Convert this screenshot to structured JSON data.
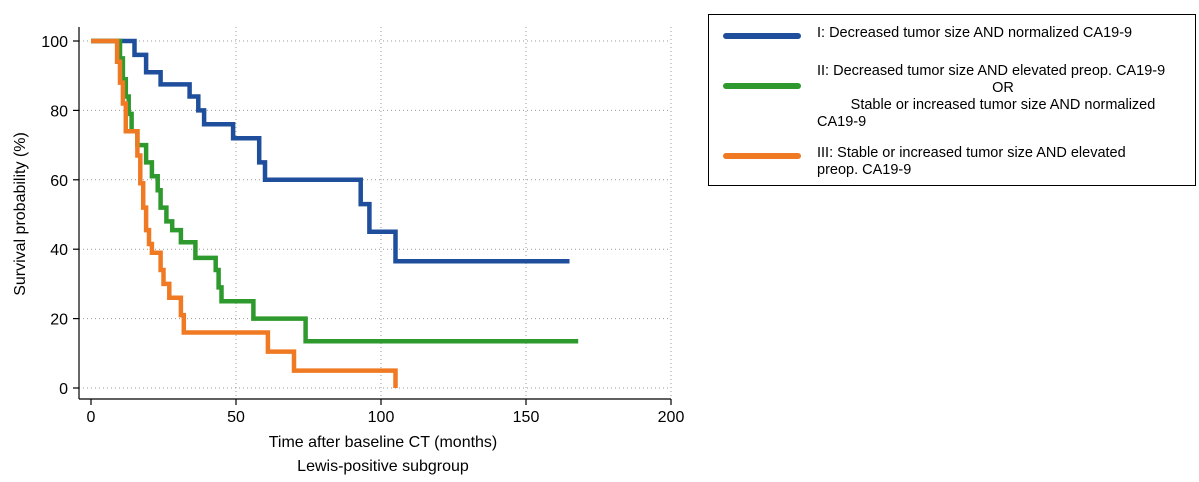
{
  "chart_data": {
    "type": "line",
    "step": true,
    "xlabel": "Time after baseline CT (months)",
    "subtitle": "Lewis-positive subgroup",
    "ylabel": "Survival probability (%)",
    "xlim": [
      0,
      200
    ],
    "ylim": [
      0,
      100
    ],
    "xticks": [
      0,
      50,
      100,
      150,
      200
    ],
    "yticks": [
      0,
      20,
      40,
      60,
      80,
      100
    ],
    "grid": true,
    "legend_position": "right",
    "series": [
      {
        "name": "I: Decreased tumor size AND normalized CA19-9",
        "color": "#1f4e9c",
        "points": [
          [
            0,
            100
          ],
          [
            15,
            100
          ],
          [
            15,
            96
          ],
          [
            19,
            96
          ],
          [
            19,
            91
          ],
          [
            24,
            91
          ],
          [
            24,
            87.5
          ],
          [
            34,
            87.5
          ],
          [
            34,
            84
          ],
          [
            37,
            84
          ],
          [
            37,
            80
          ],
          [
            39,
            80
          ],
          [
            39,
            76
          ],
          [
            49,
            76
          ],
          [
            49,
            72
          ],
          [
            58,
            72
          ],
          [
            58,
            65
          ],
          [
            60,
            65
          ],
          [
            60,
            60
          ],
          [
            93,
            60
          ],
          [
            93,
            53
          ],
          [
            96,
            53
          ],
          [
            96,
            45
          ],
          [
            105,
            45
          ],
          [
            105,
            36.5
          ],
          [
            165,
            36.5
          ]
        ]
      },
      {
        "name_lines": [
          "II: Decreased tumor size AND elevated preop. CA19-9",
          "OR",
          "Stable or increased tumor size AND normalized",
          "CA19-9"
        ],
        "color": "#2e9a2e",
        "points": [
          [
            0,
            100
          ],
          [
            10,
            100
          ],
          [
            10,
            95
          ],
          [
            11,
            95
          ],
          [
            11,
            89
          ],
          [
            12,
            89
          ],
          [
            12,
            84
          ],
          [
            13,
            84
          ],
          [
            13,
            79
          ],
          [
            14,
            79
          ],
          [
            14,
            74
          ],
          [
            16,
            74
          ],
          [
            16,
            70
          ],
          [
            19,
            70
          ],
          [
            19,
            65
          ],
          [
            21,
            65
          ],
          [
            21,
            61
          ],
          [
            23,
            61
          ],
          [
            23,
            57
          ],
          [
            24,
            57
          ],
          [
            24,
            52
          ],
          [
            26,
            52
          ],
          [
            26,
            48
          ],
          [
            28,
            48
          ],
          [
            28,
            45.5
          ],
          [
            31,
            45.5
          ],
          [
            31,
            42
          ],
          [
            36,
            42
          ],
          [
            36,
            37.5
          ],
          [
            43,
            37.5
          ],
          [
            43,
            34
          ],
          [
            44,
            34
          ],
          [
            44,
            29
          ],
          [
            45,
            29
          ],
          [
            45,
            25
          ],
          [
            56,
            25
          ],
          [
            56,
            20
          ],
          [
            74,
            20
          ],
          [
            74,
            13.5
          ],
          [
            168,
            13.5
          ]
        ]
      },
      {
        "name_lines": [
          "III: Stable or increased tumor size AND elevated",
          "preop. CA19-9"
        ],
        "color": "#f07a23",
        "points": [
          [
            0,
            100
          ],
          [
            9,
            100
          ],
          [
            9,
            94
          ],
          [
            10,
            94
          ],
          [
            10,
            88
          ],
          [
            11,
            88
          ],
          [
            11,
            82
          ],
          [
            12,
            82
          ],
          [
            12,
            74
          ],
          [
            16,
            74
          ],
          [
            16,
            67
          ],
          [
            17,
            67
          ],
          [
            17,
            59
          ],
          [
            18,
            59
          ],
          [
            18,
            52
          ],
          [
            19,
            52
          ],
          [
            19,
            45.5
          ],
          [
            20,
            45.5
          ],
          [
            20,
            41.5
          ],
          [
            21,
            41.5
          ],
          [
            21,
            39
          ],
          [
            24,
            39
          ],
          [
            24,
            34
          ],
          [
            25,
            34
          ],
          [
            25,
            30
          ],
          [
            27,
            30
          ],
          [
            27,
            26
          ],
          [
            31,
            26
          ],
          [
            31,
            21
          ],
          [
            32,
            21
          ],
          [
            32,
            16
          ],
          [
            61,
            16
          ],
          [
            61,
            10.5
          ],
          [
            70,
            10.5
          ],
          [
            70,
            5
          ],
          [
            105,
            5
          ],
          [
            105,
            0
          ]
        ]
      }
    ]
  }
}
